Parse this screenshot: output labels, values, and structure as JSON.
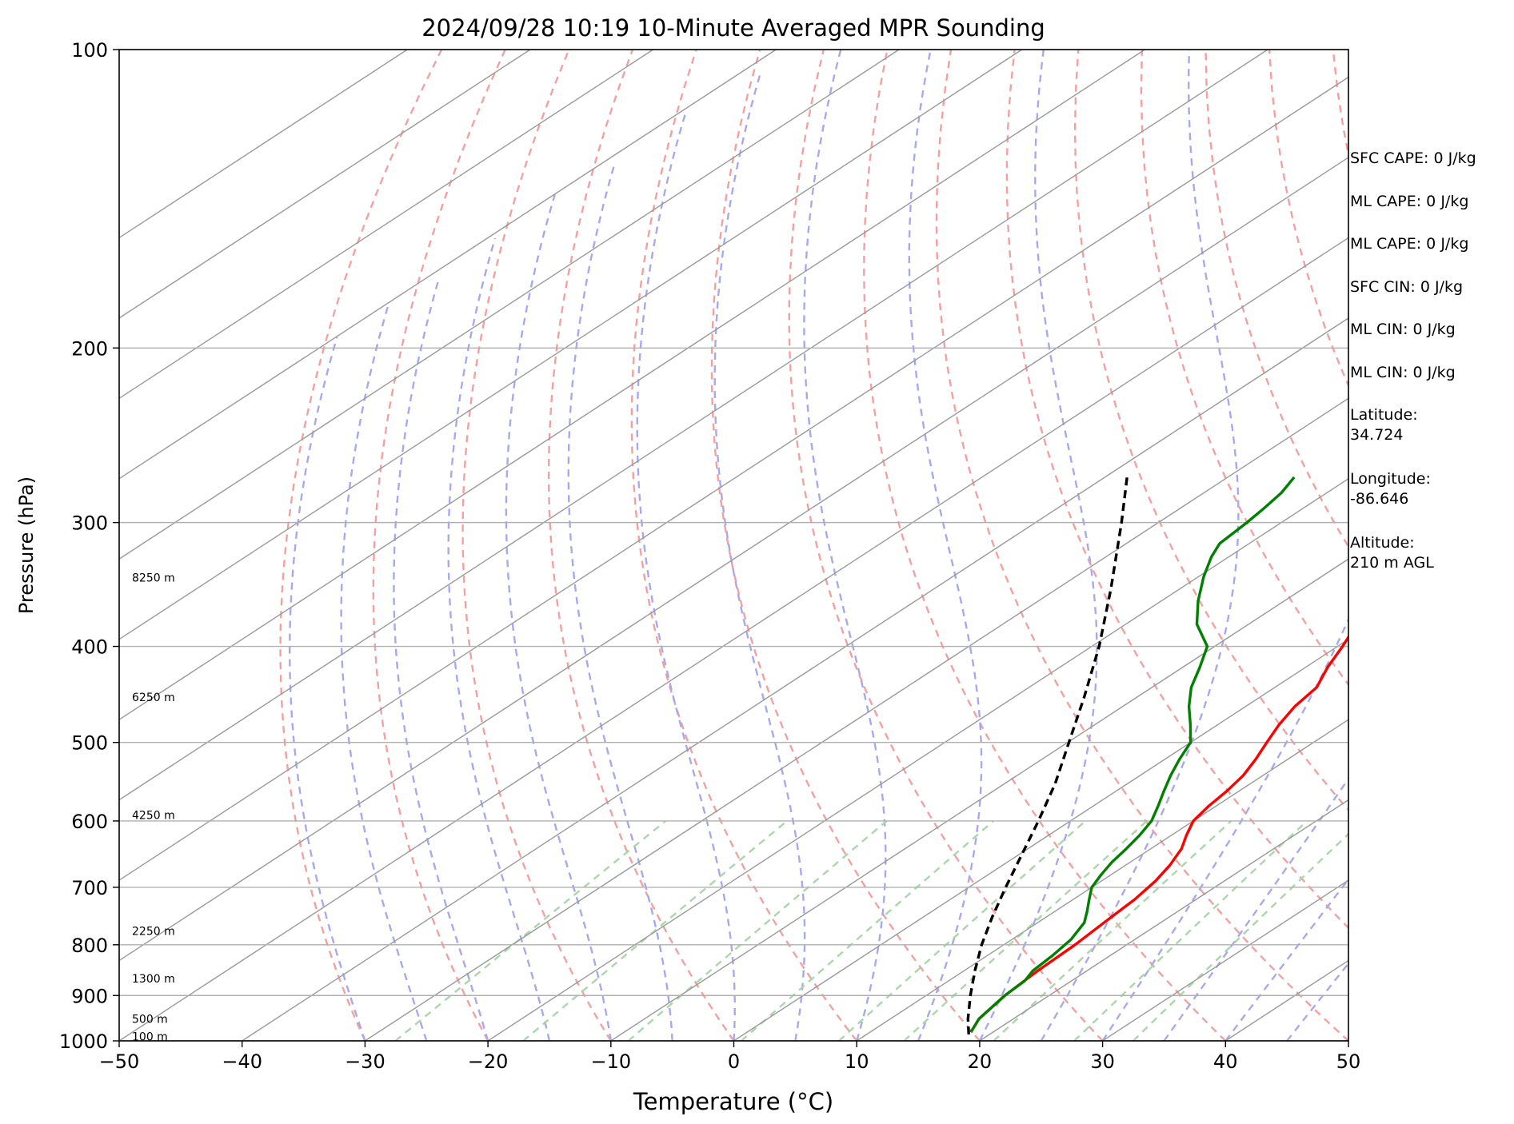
{
  "chart_data": {
    "type": "line",
    "subtype": "skew-t log-p sounding",
    "title": "2024/09/28 10:19 10-Minute Averaged MPR Sounding",
    "xlabel": "Temperature (°C)",
    "ylabel": "Pressure (hPa)",
    "xlim": [
      -50,
      50
    ],
    "ylim": [
      1000,
      100
    ],
    "y_scale": "log",
    "x_ticks": [
      -50,
      -40,
      -30,
      -20,
      -10,
      0,
      10,
      20,
      30,
      40,
      50
    ],
    "x_tick_labels": [
      "−50",
      "−40",
      "−30",
      "−20",
      "−10",
      "0",
      "10",
      "20",
      "30",
      "40",
      "50"
    ],
    "y_ticks": [
      1000,
      900,
      800,
      700,
      600,
      500,
      400,
      300,
      200,
      100
    ],
    "y_tick_labels": [
      "1000",
      "900",
      "800",
      "700",
      "600",
      "500",
      "400",
      "300",
      "200",
      "100"
    ],
    "grid": true,
    "background_lines": {
      "isotherm_color": "#999999",
      "dry_adiabat_color": "#f4a0a0",
      "moist_adiabat_color": "#a8a8f0",
      "mixing_ratio_color": "#a8d8a8"
    },
    "height_labels": [
      {
        "text": "100 m",
        "p": 990
      },
      {
        "text": "500 m",
        "p": 950
      },
      {
        "text": "1300 m",
        "p": 865
      },
      {
        "text": "2250 m",
        "p": 775
      },
      {
        "text": "4250 m",
        "p": 592
      },
      {
        "text": "6250 m",
        "p": 450
      },
      {
        "text": "8250 m",
        "p": 341
      }
    ],
    "series": [
      {
        "color": "#ff0000",
        "points": [
          [
            980,
            18.2
          ],
          [
            950,
            17.2
          ],
          [
            900,
            16.4
          ],
          [
            850,
            16.0
          ],
          [
            800,
            15.8
          ],
          [
            760,
            15.4
          ],
          [
            720,
            15.0
          ],
          [
            690,
            14.4
          ],
          [
            665,
            13.6
          ],
          [
            640,
            12.5
          ],
          [
            620,
            11.2
          ],
          [
            600,
            10.0
          ],
          [
            580,
            9.4
          ],
          [
            560,
            9.0
          ],
          [
            540,
            8.4
          ],
          [
            520,
            7.4
          ],
          [
            500,
            6.2
          ],
          [
            480,
            5.0
          ],
          [
            460,
            4.0
          ],
          [
            440,
            3.4
          ],
          [
            420,
            1.8
          ],
          [
            400,
            0.4
          ],
          [
            380,
            -1.2
          ],
          [
            360,
            -3.3
          ],
          [
            340,
            -5.6
          ],
          [
            320,
            -7.8
          ],
          [
            300,
            -10.2
          ],
          [
            290,
            -11.6
          ],
          [
            280,
            -12.8
          ],
          [
            272,
            -13.6
          ]
        ]
      },
      {
        "color": "#008000",
        "points": [
          [
            980,
            18.2
          ],
          [
            950,
            17.2
          ],
          [
            900,
            16.4
          ],
          [
            870,
            16.2
          ],
          [
            850,
            15.6
          ],
          [
            820,
            15.3
          ],
          [
            790,
            14.8
          ],
          [
            760,
            13.8
          ],
          [
            740,
            12.6
          ],
          [
            720,
            11.3
          ],
          [
            700,
            10.0
          ],
          [
            680,
            9.2
          ],
          [
            660,
            8.5
          ],
          [
            640,
            8.0
          ],
          [
            620,
            7.4
          ],
          [
            600,
            6.6
          ],
          [
            580,
            5.3
          ],
          [
            560,
            3.9
          ],
          [
            540,
            2.5
          ],
          [
            520,
            1.2
          ],
          [
            500,
            0.0
          ],
          [
            480,
            -2.2
          ],
          [
            460,
            -4.6
          ],
          [
            440,
            -6.8
          ],
          [
            420,
            -8.6
          ],
          [
            400,
            -10.6
          ],
          [
            380,
            -14.2
          ],
          [
            360,
            -17.0
          ],
          [
            340,
            -19.6
          ],
          [
            325,
            -21.4
          ],
          [
            315,
            -22.4
          ],
          [
            300,
            -22.8
          ],
          [
            290,
            -23.2
          ],
          [
            280,
            -23.7
          ],
          [
            270,
            -24.6
          ]
        ]
      },
      {
        "color": "#000000",
        "dashed": true,
        "points": [
          [
            985,
            18.3
          ],
          [
            950,
            16.3
          ],
          [
            900,
            13.6
          ],
          [
            850,
            10.9
          ],
          [
            800,
            8.2
          ],
          [
            750,
            5.6
          ],
          [
            700,
            3.0
          ],
          [
            650,
            0.3
          ],
          [
            600,
            -2.6
          ],
          [
            550,
            -5.9
          ],
          [
            500,
            -9.9
          ],
          [
            450,
            -14.3
          ],
          [
            400,
            -19.4
          ],
          [
            350,
            -25.6
          ],
          [
            300,
            -33.0
          ],
          [
            270,
            -38.2
          ]
        ]
      }
    ]
  },
  "info_panel": {
    "items": [
      "SFC CAPE: 0 J/kg",
      "ML CAPE: 0 J/kg",
      "ML CAPE: 0 J/kg",
      "SFC CIN: 0 J/kg",
      "ML CIN: 0 J/kg",
      "ML CIN: 0 J/kg"
    ],
    "latitude_label": "Latitude:",
    "latitude_value": "34.724",
    "longitude_label": "Longitude:",
    "longitude_value": "-86.646",
    "altitude_label": "Altitude:",
    "altitude_value": "210 m AGL"
  }
}
